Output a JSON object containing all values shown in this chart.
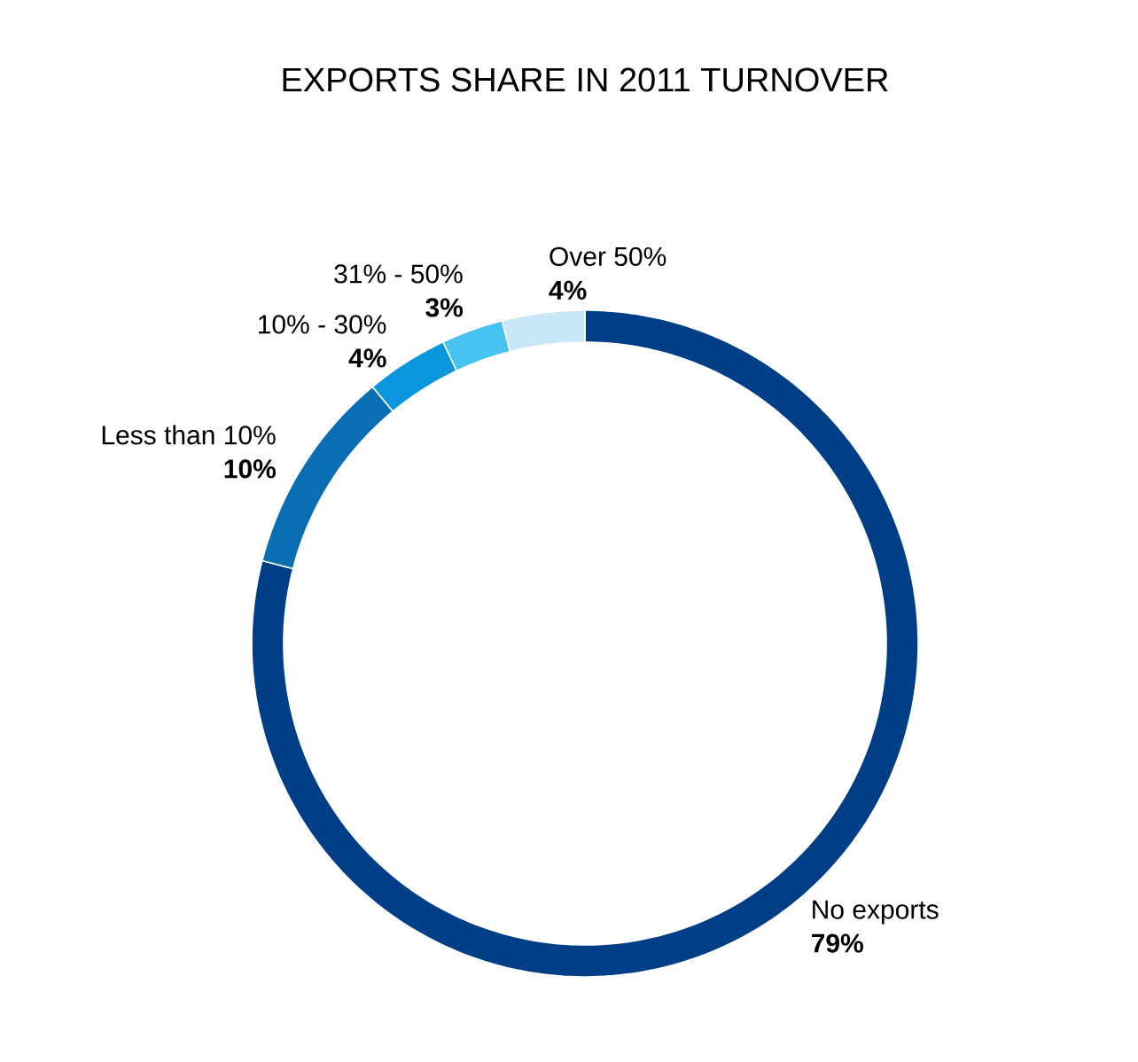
{
  "chart_data": {
    "type": "donut",
    "title": "EXPORTS SHARE IN 2011 TURNOVER",
    "categories": [
      "No exports",
      "Less than 10%",
      "10% - 30%",
      "31% - 50%",
      "Over 50%"
    ],
    "values": [
      79,
      10,
      4,
      3,
      4
    ],
    "value_labels": [
      "79%",
      "10%",
      "4%",
      "3%",
      "4%"
    ],
    "colors": [
      "#003e87",
      "#0a6eb4",
      "#0a96dc",
      "#46c3f0",
      "#c8e8f8"
    ]
  }
}
